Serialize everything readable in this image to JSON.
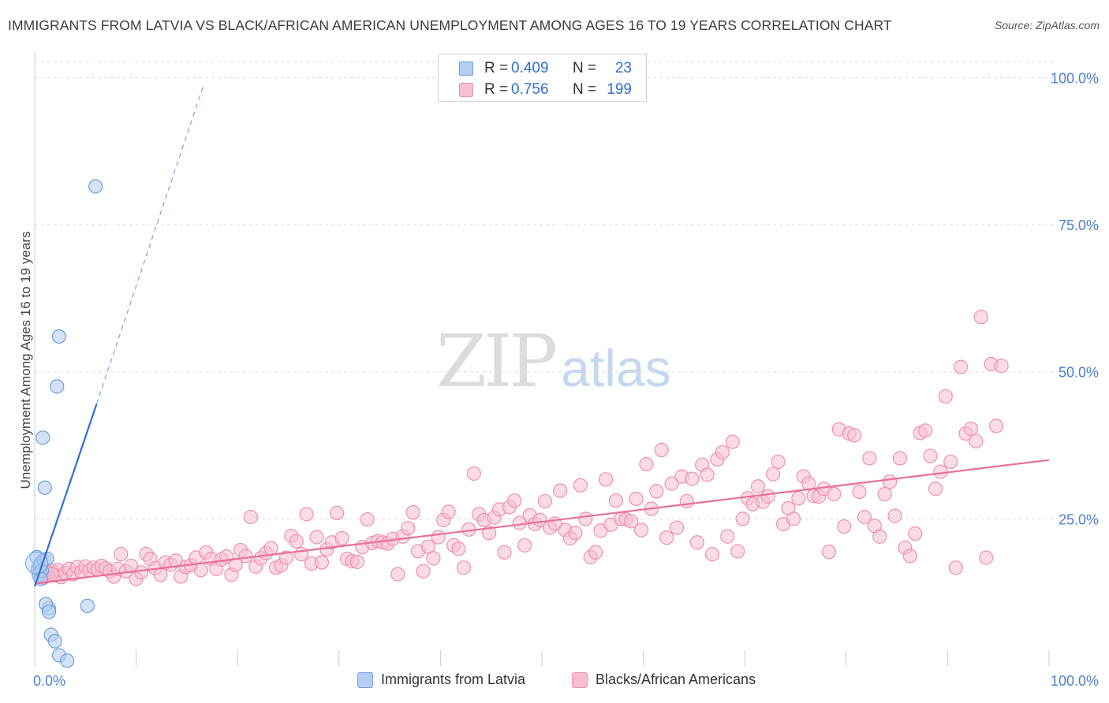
{
  "title": "IMMIGRANTS FROM LATVIA VS BLACK/AFRICAN AMERICAN UNEMPLOYMENT AMONG AGES 16 TO 19 YEARS CORRELATION CHART",
  "source": "Source: ZipAtlas.com",
  "watermark": {
    "zip": "ZIP",
    "atlas": "atlas"
  },
  "legend": {
    "rows": [
      {
        "r_label": "R =",
        "r_value": "0.409",
        "n_label": "N =",
        "n_value": "23"
      },
      {
        "r_label": "R =",
        "r_value": "0.756",
        "n_label": "N =",
        "n_value": "199"
      }
    ]
  },
  "bottom_legend": [
    "Immigrants from Latvia",
    "Blacks/African Americans"
  ],
  "colors": {
    "blue_fill": "#b5cff2",
    "blue_stroke": "#6f9fdc",
    "blue_line": "#2f6fd6",
    "pink_fill": "#f7bfd2",
    "pink_stroke": "#ee8fb1",
    "pink_line": "#e8709b",
    "axis_label": "#4a7fd0",
    "grid": "#dddddd"
  },
  "chart_data": {
    "type": "scatter",
    "title": "IMMIGRANTS FROM LATVIA VS BLACK/AFRICAN AMERICAN UNEMPLOYMENT AMONG AGES 16 TO 19 YEARS CORRELATION CHART",
    "xlabel": "",
    "ylabel": "Unemployment Among Ages 16 to 19 years",
    "xlim": [
      0,
      100
    ],
    "ylim": [
      0,
      103
    ],
    "x_tick_labels": [
      "0.0%",
      "100.0%"
    ],
    "y_ticks": [
      25,
      50,
      75,
      100
    ],
    "y_tick_labels": [
      "25.0%",
      "50.0%",
      "75.0%",
      "100.0%"
    ],
    "grid": true,
    "legend_position": "top-center",
    "series": [
      {
        "name": "Immigrants from Latvia",
        "trend": {
          "x0": 0,
          "y0": 13.5,
          "x1": 6.1,
          "y1": 44.5,
          "dash_to_x": 16.7,
          "dash_to_y": 99
        },
        "points": [
          [
            0.2,
            18.5
          ],
          [
            0.3,
            16.5
          ],
          [
            0.5,
            17.0
          ],
          [
            0.5,
            16.0
          ],
          [
            0.6,
            17.5
          ],
          [
            0.4,
            15.5
          ],
          [
            0.7,
            16.2
          ],
          [
            0.9,
            18.0
          ],
          [
            1.2,
            18.2
          ],
          [
            0.8,
            38.8
          ],
          [
            1.0,
            30.3
          ],
          [
            2.2,
            47.5
          ],
          [
            2.4,
            56.0
          ],
          [
            6.0,
            81.5
          ],
          [
            1.4,
            9.8
          ],
          [
            1.1,
            10.5
          ],
          [
            1.4,
            9.2
          ],
          [
            1.6,
            5.3
          ],
          [
            2.0,
            4.2
          ],
          [
            2.4,
            1.8
          ],
          [
            3.2,
            0.9
          ],
          [
            5.2,
            10.2
          ],
          [
            0.6,
            14.8
          ]
        ]
      },
      {
        "name": "Blacks/African Americans",
        "trend": {
          "x0": 0,
          "y0": 14.0,
          "x1": 100,
          "y1": 35.0
        },
        "points": [
          [
            0.5,
            16.0
          ],
          [
            0.8,
            15.5
          ],
          [
            1.0,
            16.5
          ],
          [
            1.4,
            15.8
          ],
          [
            1.7,
            16.2
          ],
          [
            2.0,
            15.4
          ],
          [
            2.3,
            16.3
          ],
          [
            2.6,
            15.1
          ],
          [
            3.0,
            15.8
          ],
          [
            3.4,
            16.5
          ],
          [
            3.8,
            15.6
          ],
          [
            4.2,
            16.8
          ],
          [
            4.6,
            16.0
          ],
          [
            5.0,
            16.9
          ],
          [
            5.4,
            16.2
          ],
          [
            5.8,
            16.7
          ],
          [
            6.2,
            16.4
          ],
          [
            6.6,
            17.0
          ],
          [
            7.0,
            16.6
          ],
          [
            7.4,
            16.1
          ],
          [
            7.8,
            15.2
          ],
          [
            8.2,
            16.5
          ],
          [
            8.5,
            19.0
          ],
          [
            9.0,
            16.1
          ],
          [
            9.5,
            17.0
          ],
          [
            10.0,
            14.8
          ],
          [
            10.5,
            15.9
          ],
          [
            11.0,
            19.0
          ],
          [
            11.4,
            18.2
          ],
          [
            11.9,
            16.6
          ],
          [
            12.4,
            15.5
          ],
          [
            12.9,
            17.6
          ],
          [
            13.4,
            17.2
          ],
          [
            13.9,
            17.9
          ],
          [
            14.4,
            15.2
          ],
          [
            14.9,
            16.8
          ],
          [
            15.4,
            17.1
          ],
          [
            15.9,
            18.4
          ],
          [
            16.4,
            16.3
          ],
          [
            16.9,
            19.3
          ],
          [
            17.4,
            18.2
          ],
          [
            17.9,
            16.5
          ],
          [
            18.4,
            18.1
          ],
          [
            18.9,
            18.6
          ],
          [
            19.4,
            15.5
          ],
          [
            19.8,
            17.2
          ],
          [
            20.3,
            19.7
          ],
          [
            20.8,
            18.7
          ],
          [
            21.3,
            25.3
          ],
          [
            21.8,
            16.9
          ],
          [
            22.3,
            18.3
          ],
          [
            22.8,
            19.2
          ],
          [
            23.3,
            20.0
          ],
          [
            23.8,
            16.7
          ],
          [
            24.3,
            17.1
          ],
          [
            24.8,
            18.4
          ],
          [
            25.3,
            22.1
          ],
          [
            25.8,
            21.2
          ],
          [
            26.3,
            19.0
          ],
          [
            26.8,
            25.8
          ],
          [
            27.3,
            17.4
          ],
          [
            27.8,
            21.9
          ],
          [
            28.3,
            17.6
          ],
          [
            28.8,
            19.8
          ],
          [
            29.3,
            21.0
          ],
          [
            29.8,
            26.0
          ],
          [
            30.3,
            21.7
          ],
          [
            30.8,
            18.2
          ],
          [
            31.3,
            17.8
          ],
          [
            31.8,
            17.7
          ],
          [
            32.3,
            20.2
          ],
          [
            32.8,
            24.9
          ],
          [
            33.3,
            20.9
          ],
          [
            33.8,
            21.2
          ],
          [
            34.3,
            21.0
          ],
          [
            34.8,
            20.8
          ],
          [
            35.3,
            21.6
          ],
          [
            35.8,
            15.6
          ],
          [
            36.3,
            22.0
          ],
          [
            36.8,
            23.4
          ],
          [
            37.3,
            26.1
          ],
          [
            37.8,
            19.5
          ],
          [
            38.3,
            16.1
          ],
          [
            38.8,
            20.3
          ],
          [
            39.3,
            18.3
          ],
          [
            39.8,
            21.9
          ],
          [
            40.3,
            24.8
          ],
          [
            40.8,
            26.2
          ],
          [
            41.3,
            20.5
          ],
          [
            41.8,
            19.9
          ],
          [
            42.3,
            16.7
          ],
          [
            42.8,
            23.2
          ],
          [
            43.3,
            32.7
          ],
          [
            43.8,
            25.8
          ],
          [
            44.3,
            24.8
          ],
          [
            44.8,
            22.6
          ],
          [
            45.3,
            25.2
          ],
          [
            45.8,
            26.6
          ],
          [
            46.3,
            19.3
          ],
          [
            46.8,
            27.0
          ],
          [
            47.3,
            28.1
          ],
          [
            47.8,
            24.3
          ],
          [
            48.3,
            20.5
          ],
          [
            48.8,
            25.6
          ],
          [
            49.3,
            24.1
          ],
          [
            49.8,
            24.8
          ],
          [
            50.3,
            28.0
          ],
          [
            50.8,
            23.5
          ],
          [
            51.3,
            24.2
          ],
          [
            51.8,
            29.8
          ],
          [
            52.3,
            23.1
          ],
          [
            52.8,
            21.7
          ],
          [
            53.3,
            22.6
          ],
          [
            53.8,
            30.7
          ],
          [
            54.3,
            25.0
          ],
          [
            54.8,
            18.5
          ],
          [
            55.3,
            19.3
          ],
          [
            55.8,
            23.0
          ],
          [
            56.3,
            31.7
          ],
          [
            56.8,
            24.0
          ],
          [
            57.3,
            28.1
          ],
          [
            57.8,
            25.0
          ],
          [
            58.3,
            24.9
          ],
          [
            58.8,
            24.6
          ],
          [
            59.3,
            28.4
          ],
          [
            59.8,
            23.1
          ],
          [
            60.3,
            34.3
          ],
          [
            60.8,
            26.7
          ],
          [
            61.3,
            29.7
          ],
          [
            61.8,
            36.7
          ],
          [
            62.3,
            21.8
          ],
          [
            62.8,
            31.0
          ],
          [
            63.3,
            23.5
          ],
          [
            63.8,
            32.2
          ],
          [
            64.3,
            28.0
          ],
          [
            64.8,
            31.8
          ],
          [
            65.3,
            21.0
          ],
          [
            65.8,
            34.2
          ],
          [
            66.3,
            32.5
          ],
          [
            66.8,
            19.0
          ],
          [
            67.3,
            35.1
          ],
          [
            67.8,
            36.3
          ],
          [
            68.3,
            22.0
          ],
          [
            68.8,
            38.1
          ],
          [
            69.3,
            19.5
          ],
          [
            69.8,
            25.0
          ],
          [
            70.3,
            28.5
          ],
          [
            70.8,
            27.5
          ],
          [
            71.3,
            30.5
          ],
          [
            71.8,
            27.9
          ],
          [
            72.3,
            28.8
          ],
          [
            72.8,
            32.6
          ],
          [
            73.3,
            34.7
          ],
          [
            73.8,
            24.1
          ],
          [
            74.3,
            26.8
          ],
          [
            74.8,
            25.0
          ],
          [
            75.3,
            28.5
          ],
          [
            75.8,
            32.2
          ],
          [
            76.3,
            31.0
          ],
          [
            76.8,
            28.9
          ],
          [
            77.3,
            28.8
          ],
          [
            77.8,
            30.1
          ],
          [
            78.3,
            19.4
          ],
          [
            78.8,
            29.2
          ],
          [
            79.3,
            40.2
          ],
          [
            79.8,
            23.7
          ],
          [
            80.3,
            39.5
          ],
          [
            80.8,
            39.2
          ],
          [
            81.3,
            29.6
          ],
          [
            81.8,
            25.3
          ],
          [
            82.3,
            35.3
          ],
          [
            82.8,
            23.8
          ],
          [
            83.3,
            22.0
          ],
          [
            83.8,
            29.2
          ],
          [
            84.3,
            31.3
          ],
          [
            84.8,
            25.5
          ],
          [
            85.3,
            35.3
          ],
          [
            85.8,
            20.1
          ],
          [
            86.3,
            18.7
          ],
          [
            86.8,
            22.5
          ],
          [
            87.3,
            39.6
          ],
          [
            87.8,
            40.0
          ],
          [
            88.3,
            35.7
          ],
          [
            88.8,
            30.1
          ],
          [
            89.3,
            33.0
          ],
          [
            89.8,
            45.8
          ],
          [
            90.3,
            34.7
          ],
          [
            90.8,
            16.7
          ],
          [
            91.3,
            50.8
          ],
          [
            91.8,
            39.5
          ],
          [
            92.3,
            40.3
          ],
          [
            92.8,
            38.2
          ],
          [
            93.3,
            59.3
          ],
          [
            93.8,
            18.4
          ],
          [
            94.3,
            51.3
          ],
          [
            94.8,
            40.8
          ],
          [
            95.3,
            51.0
          ],
          [
            0.9,
            15.0
          ],
          [
            1.7,
            15.6
          ]
        ]
      }
    ]
  }
}
